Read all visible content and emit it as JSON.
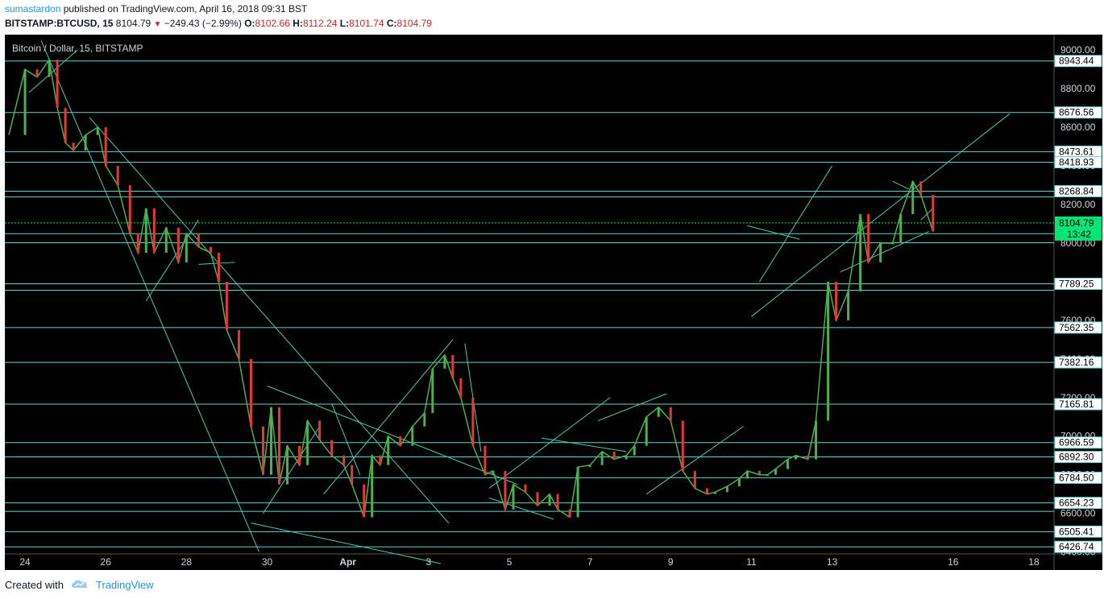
{
  "header": {
    "author": "sumastardon",
    "published_text": " published on TradingView.com, April 16, 2018 09:31 BST",
    "symbol": "BITSTAMP:BTCUSD, 15",
    "last": "8104.79",
    "change": "−249.43 (−2.99%)",
    "o_label": "O:",
    "o": "8102.66",
    "h_label": "H:",
    "h": "8112.24",
    "l_label": "L:",
    "l": "8101.74",
    "c_label": "C:",
    "c": "8104.79"
  },
  "legend": "Bitcoin / Dollar, 15, BITSTAMP",
  "footer": {
    "created_with": "Created with",
    "brand": "TradingView"
  },
  "colors": {
    "background": "#000000",
    "level_line": "#5fd3d3",
    "trend_line": "#4ec9b0",
    "up": "#4caf50",
    "down": "#e53935",
    "current_price": "#00e676"
  },
  "chart_data": {
    "type": "line",
    "title": "Bitcoin / Dollar, 15, BITSTAMP",
    "x_tick_labels": [
      "24",
      "26",
      "28",
      "30",
      "Apr",
      "3",
      "5",
      "7",
      "9",
      "11",
      "13",
      "16",
      "18"
    ],
    "y_tick_labels": [
      "9000.00",
      "8800.00",
      "8600.00",
      "8400.00",
      "8200.00",
      "8000.00",
      "7800.00",
      "7600.00",
      "7400.00",
      "7200.00",
      "7000.00",
      "6800.00",
      "6600.00",
      "6400.00"
    ],
    "ylim": [
      6390,
      9080
    ],
    "horizontal_levels": [
      8943.44,
      8676.56,
      8473.61,
      8418.93,
      8268.84,
      8239.0,
      8049.0,
      8002.0,
      7789.25,
      7755.82,
      7562.35,
      7382.16,
      7165.81,
      6966.59,
      6892.3,
      6784.5,
      6654.23,
      6610.29,
      6505.41,
      6426.74
    ],
    "price_labels": [
      "8943.44",
      "8676.56",
      "8473.61",
      "8418.93",
      "8268.84",
      "7789.25",
      "7562.35",
      "7382.16",
      "7165.81",
      "6966.59",
      "6892.30",
      "6784.50",
      "6654.23",
      "6505.41",
      "6426.74"
    ],
    "current_price": "8104.79",
    "countdown": "13:42",
    "series": [
      {
        "x": [
          23.6,
          24.0,
          24.3,
          24.6,
          24.8,
          25.0,
          25.2,
          25.5,
          25.8,
          26.0,
          26.3,
          26.6,
          26.8,
          27.0,
          27.2,
          27.5,
          27.8,
          28.0,
          28.3,
          28.6,
          28.8,
          29.0,
          29.3,
          29.6,
          29.9,
          30.1,
          30.3,
          30.5,
          30.8,
          31.0,
          31.3,
          31.6,
          31.9,
          32.1,
          32.4,
          32.6,
          32.8,
          33.0,
          33.3,
          33.6,
          33.9,
          34.1,
          34.4,
          34.6,
          34.8,
          35.1,
          35.4,
          35.6,
          35.9,
          36.1,
          36.4,
          36.7,
          37.0,
          37.2,
          37.5,
          37.7,
          38.0,
          38.3,
          38.6,
          38.9,
          39.1,
          39.4,
          39.7,
          40.0,
          40.3,
          40.6,
          40.9,
          41.1,
          41.4,
          41.7,
          41.9,
          42.2,
          42.4,
          42.6,
          42.9,
          43.1,
          43.4,
          43.6,
          43.9,
          44.1,
          44.4,
          44.7,
          44.9,
          45.2,
          45.5,
          45.7,
          46.0,
          46.2,
          46.5
        ],
        "values": [
          8560,
          8900,
          8860,
          8950,
          8700,
          8520,
          8480,
          8560,
          8600,
          8400,
          8300,
          8050,
          7950,
          8180,
          7950,
          8080,
          7900,
          8050,
          7980,
          7950,
          7800,
          7550,
          7400,
          7050,
          6800,
          7150,
          6750,
          6950,
          6850,
          7080,
          6980,
          6900,
          6850,
          6750,
          6580,
          6900,
          6850,
          7000,
          6950,
          7050,
          7120,
          7350,
          7420,
          7300,
          7200,
          6950,
          6800,
          6820,
          6620,
          6750,
          6710,
          6640,
          6700,
          6620,
          6580,
          6840,
          6850,
          6920,
          6880,
          6900,
          6950,
          7100,
          7150,
          7080,
          6820,
          6730,
          6700,
          6710,
          6740,
          6780,
          6820,
          6800,
          6800,
          6830,
          6880,
          6900,
          6880,
          7080,
          7800,
          7600,
          7750,
          8150,
          7900,
          8000,
          8000,
          8150,
          8320,
          8250,
          8060
        ]
      }
    ]
  }
}
